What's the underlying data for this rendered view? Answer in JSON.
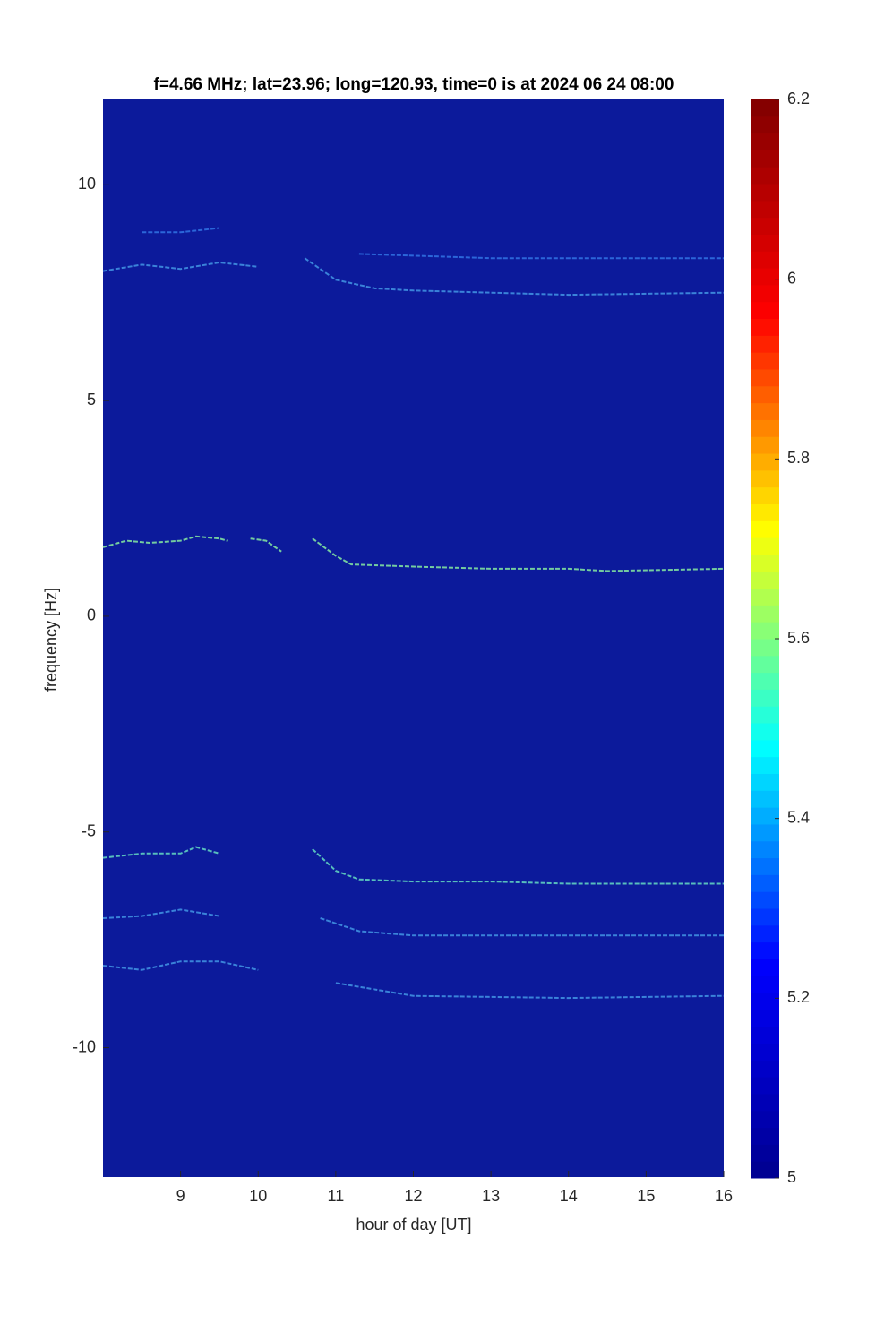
{
  "chart_data": {
    "type": "spectrogram",
    "title": "f=4.66 MHz;  lat=23.96; long=120.93, time=0 is at 2024 06 24 08:00",
    "xlabel": "hour of day [UT]",
    "ylabel": "frequency [Hz]",
    "xlim": [
      8,
      16
    ],
    "xticks": [
      9,
      10,
      11,
      12,
      13,
      14,
      15,
      16
    ],
    "ylim": [
      -13,
      12
    ],
    "yticks": [
      -10,
      -5,
      0,
      5,
      10
    ],
    "clim": [
      5,
      6.2
    ],
    "cticks": [
      5,
      5.2,
      5.4,
      5.6,
      5.8,
      6,
      6.2
    ],
    "colormap": [
      "#00008f",
      "#0000ff",
      "#00ffff",
      "#ffff00",
      "#ff0000",
      "#800000"
    ],
    "background": "#0c1a9b",
    "series": [
      {
        "color": "#7fe0a0",
        "x": [
          8,
          8.3,
          8.6,
          9,
          9.2,
          9.5,
          9.6,
          null,
          9.9,
          10.1,
          10.3,
          null,
          10.7,
          11,
          11.2,
          12,
          13,
          14,
          14.5,
          16
        ],
        "y": [
          1.6,
          1.75,
          1.7,
          1.75,
          1.85,
          1.8,
          1.75,
          null,
          1.8,
          1.75,
          1.5,
          null,
          1.8,
          1.4,
          1.2,
          1.15,
          1.1,
          1.1,
          1.05,
          1.1
        ]
      },
      {
        "color": "#5fd0c0",
        "x": [
          8,
          8.5,
          9,
          9.2,
          9.5,
          null,
          10.7,
          11,
          11.3,
          12,
          13,
          14,
          16
        ],
        "y": [
          -5.6,
          -5.5,
          -5.5,
          -5.35,
          -5.5,
          null,
          -5.4,
          -5.9,
          -6.1,
          -6.15,
          -6.15,
          -6.2,
          -6.2
        ]
      },
      {
        "color": "#3f8fe0",
        "x": [
          8,
          8.5,
          9,
          9.5,
          10,
          null,
          10.6,
          11,
          11.5,
          12,
          13,
          14,
          16
        ],
        "y": [
          8.0,
          8.15,
          8.05,
          8.2,
          8.1,
          null,
          8.3,
          7.8,
          7.6,
          7.55,
          7.5,
          7.45,
          7.5
        ]
      },
      {
        "color": "#2f6fe0",
        "x": [
          8.5,
          9,
          9.5,
          null,
          11.3,
          13,
          16
        ],
        "y": [
          8.9,
          8.9,
          9.0,
          null,
          8.4,
          8.3,
          8.3
        ]
      },
      {
        "color": "#3f8fe0",
        "x": [
          8,
          8.5,
          9,
          9.5,
          null,
          10.8,
          11.3,
          12,
          14,
          16
        ],
        "y": [
          -7.0,
          -6.95,
          -6.8,
          -6.95,
          null,
          -7.0,
          -7.3,
          -7.4,
          -7.4,
          -7.4
        ]
      },
      {
        "color": "#3f8fe0",
        "x": [
          8,
          8.5,
          9,
          9.5,
          10,
          null,
          11,
          12,
          14,
          16
        ],
        "y": [
          -8.1,
          -8.2,
          -8.0,
          -8.0,
          -8.2,
          null,
          -8.5,
          -8.8,
          -8.85,
          -8.8
        ]
      }
    ]
  }
}
